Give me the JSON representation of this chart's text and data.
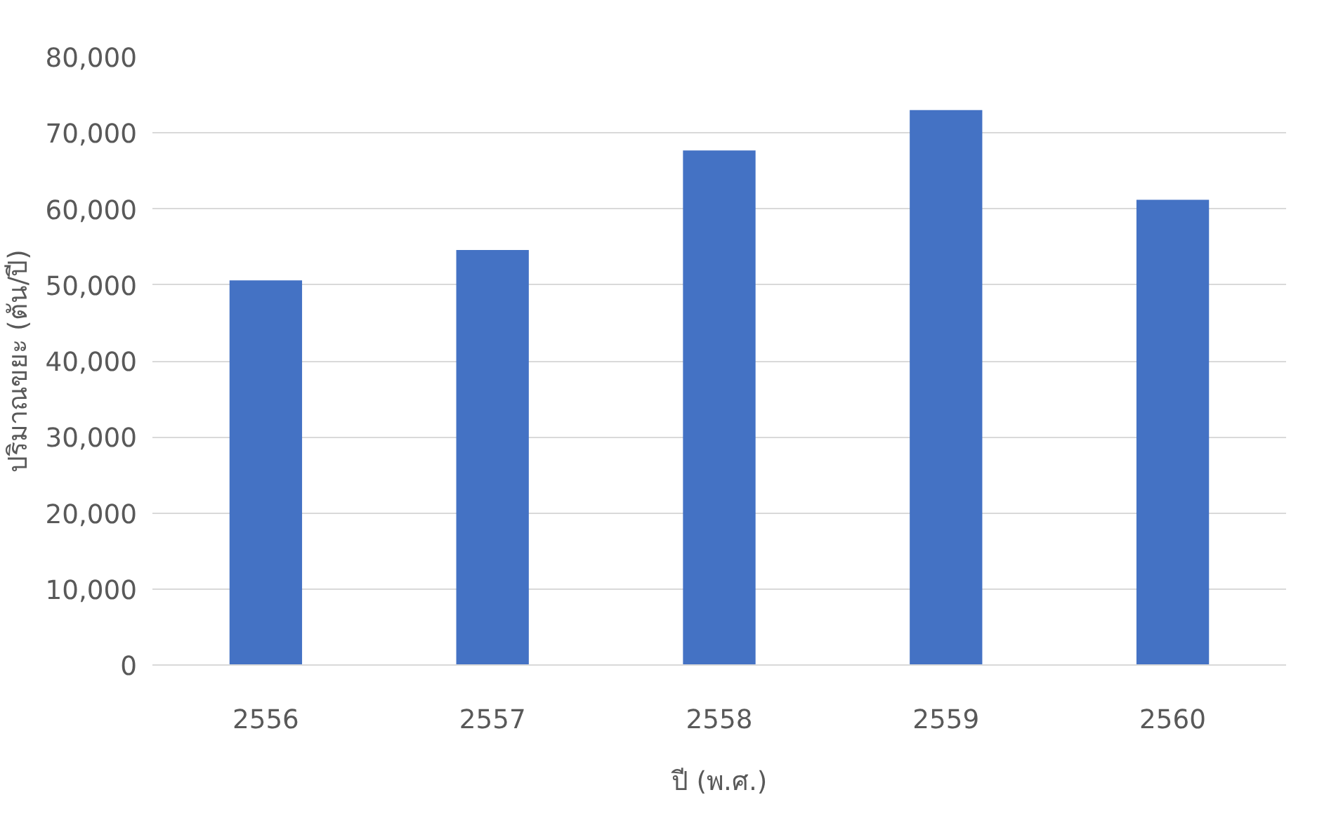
{
  "chart_data": {
    "type": "bar",
    "categories": [
      "2556",
      "2557",
      "2558",
      "2559",
      "2560"
    ],
    "values": [
      50600,
      54600,
      67700,
      73000,
      61200
    ],
    "color": "#4472c4",
    "xlabel": "ปี (พ.ศ.)",
    "ylabel": "ปริมาณขยะ (ตัน/ปี)",
    "ylim": [
      0,
      80000
    ],
    "yticks": [
      {
        "value": 0,
        "label": "0"
      },
      {
        "value": 10000,
        "label": "10,000"
      },
      {
        "value": 20000,
        "label": "20,000"
      },
      {
        "value": 30000,
        "label": "30,000"
      },
      {
        "value": 40000,
        "label": "40,000"
      },
      {
        "value": 50000,
        "label": "50,000"
      },
      {
        "value": 60000,
        "label": "60,000"
      },
      {
        "value": 70000,
        "label": "70,000"
      },
      {
        "value": 80000,
        "label": "80,000"
      }
    ],
    "grid": "y"
  }
}
